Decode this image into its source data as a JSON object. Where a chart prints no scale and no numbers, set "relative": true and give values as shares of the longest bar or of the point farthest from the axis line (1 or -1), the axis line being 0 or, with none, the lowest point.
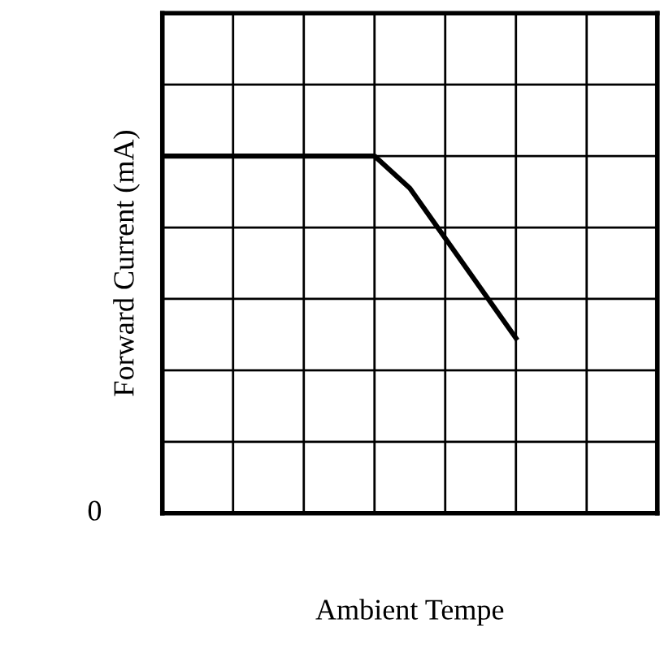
{
  "chart_data": {
    "type": "line",
    "relative": true,
    "xlabel": "Ambient Tempe",
    "ylabel": "Forward Current (mA)",
    "categories": [
      null,
      null,
      null,
      null,
      null,
      null,
      null,
      null,
      null,
      null,
      null,
      null,
      null,
      null,
      null
    ],
    "series": [
      {
        "color": "#000000",
        "values": [
          1,
          1,
          1,
          1,
          1,
          1,
          1,
          0.91,
          0.77,
          0.63,
          0.49,
          null,
          null,
          null,
          null
        ]
      }
    ],
    "annotations": [
      "0"
    ],
    "grid": true,
    "marker": "none",
    "line_style": "solid",
    "legend": false,
    "tick_labels": false
  }
}
